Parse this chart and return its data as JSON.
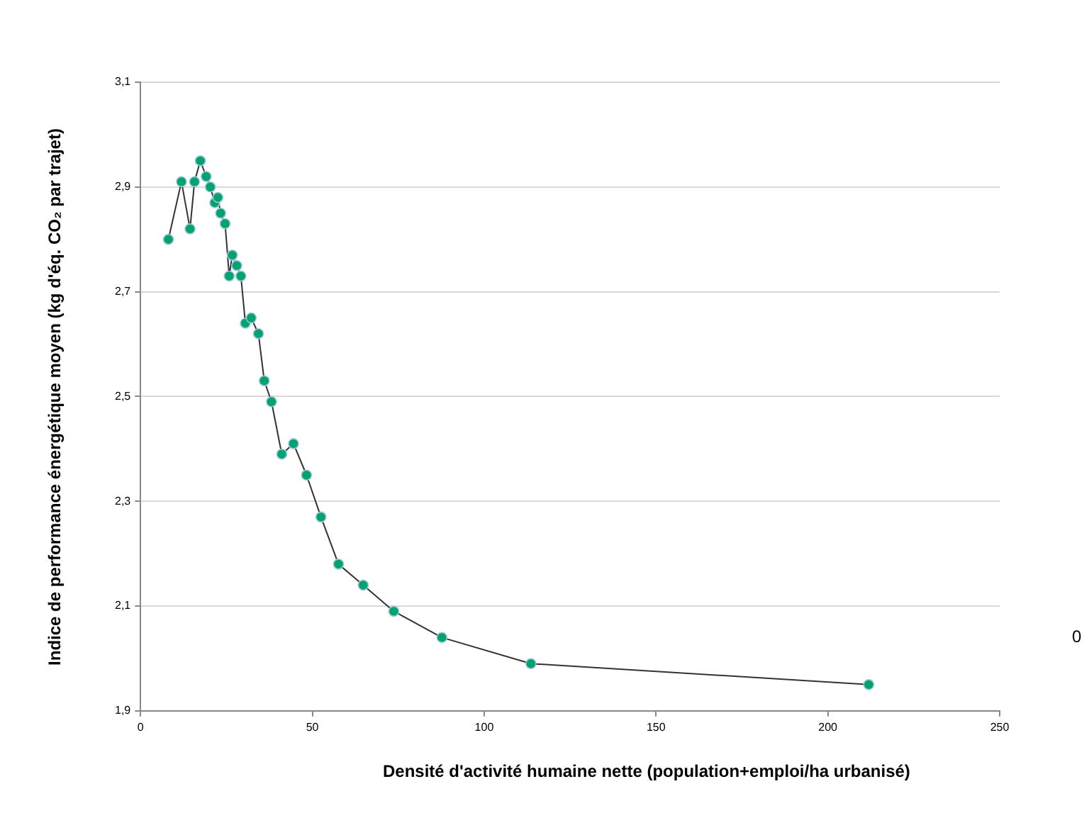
{
  "chart_data": {
    "type": "line",
    "xlabel": "Densité d'activité humaine nette (population+emploi/ha urbanisé)",
    "ylabel": "Indice de performance énergétique moyen (kg d'éq. CO₂ par trajet)",
    "x": [
      8.1,
      11.9,
      14.4,
      15.7,
      17.4,
      19.1,
      20.3,
      21.6,
      22.5,
      23.3,
      24.6,
      25.8,
      26.7,
      28.0,
      29.2,
      30.5,
      32.2,
      34.3,
      36.0,
      38.1,
      41.1,
      44.5,
      48.3,
      52.5,
      57.6,
      64.8,
      73.7,
      87.7,
      113.6,
      211.9
    ],
    "series": [
      {
        "color": "#00a36c",
        "values": [
          2.8,
          2.91,
          2.82,
          2.91,
          2.95,
          2.92,
          2.9,
          2.87,
          2.88,
          2.85,
          2.83,
          2.73,
          2.77,
          2.75,
          2.73,
          2.64,
          2.65,
          2.62,
          2.53,
          2.49,
          2.39,
          2.41,
          2.35,
          2.27,
          2.18,
          2.14,
          2.09,
          2.04,
          1.99,
          1.95
        ]
      }
    ],
    "xlim": [
      0,
      250
    ],
    "xticks": [
      0,
      50,
      100,
      150,
      200,
      250
    ],
    "ylim": [
      1.9,
      3.1
    ],
    "yticks": [
      {
        "value": 1.9,
        "label": "1,9"
      },
      {
        "value": 2.1,
        "label": "2,1"
      },
      {
        "value": 2.3,
        "label": "2,3"
      },
      {
        "value": 2.5,
        "label": "2,5"
      },
      {
        "value": 2.7,
        "label": "2,7"
      },
      {
        "value": 2.9,
        "label": "2,9"
      },
      {
        "value": 3.1,
        "label": "3,1"
      }
    ],
    "grid": "y",
    "legend": false,
    "marker": "circle",
    "line_style": "solid",
    "annotations": [
      "0"
    ]
  }
}
